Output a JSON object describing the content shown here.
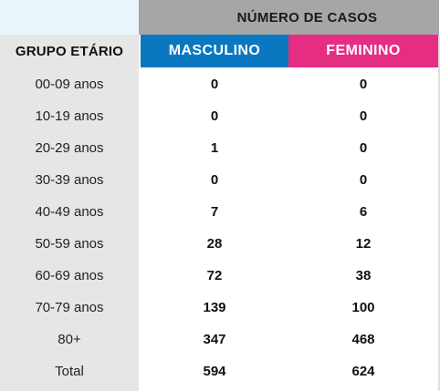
{
  "header": {
    "cases_title": "NÚMERO DE CASOS",
    "age_group_title": "GRUPO ETÁRIO",
    "male_title": "MASCULINO",
    "female_title": "FEMININO"
  },
  "colors": {
    "male": "#0a78c0",
    "female": "#e52d82",
    "header_gray": "#a6a6a6",
    "age_column_bg": "#e6e6e6"
  },
  "rows": [
    {
      "age": "00-09 anos",
      "male": "0",
      "female": "0"
    },
    {
      "age": "10-19 anos",
      "male": "0",
      "female": "0"
    },
    {
      "age": "20-29 anos",
      "male": "1",
      "female": "0"
    },
    {
      "age": "30-39 anos",
      "male": "0",
      "female": "0"
    },
    {
      "age": "40-49 anos",
      "male": "7",
      "female": "6"
    },
    {
      "age": "50-59 anos",
      "male": "28",
      "female": "12"
    },
    {
      "age": "60-69 anos",
      "male": "72",
      "female": "38"
    },
    {
      "age": "70-79 anos",
      "male": "139",
      "female": "100"
    },
    {
      "age": "80+",
      "male": "347",
      "female": "468"
    },
    {
      "age": "Total",
      "male": "594",
      "female": "624"
    }
  ]
}
